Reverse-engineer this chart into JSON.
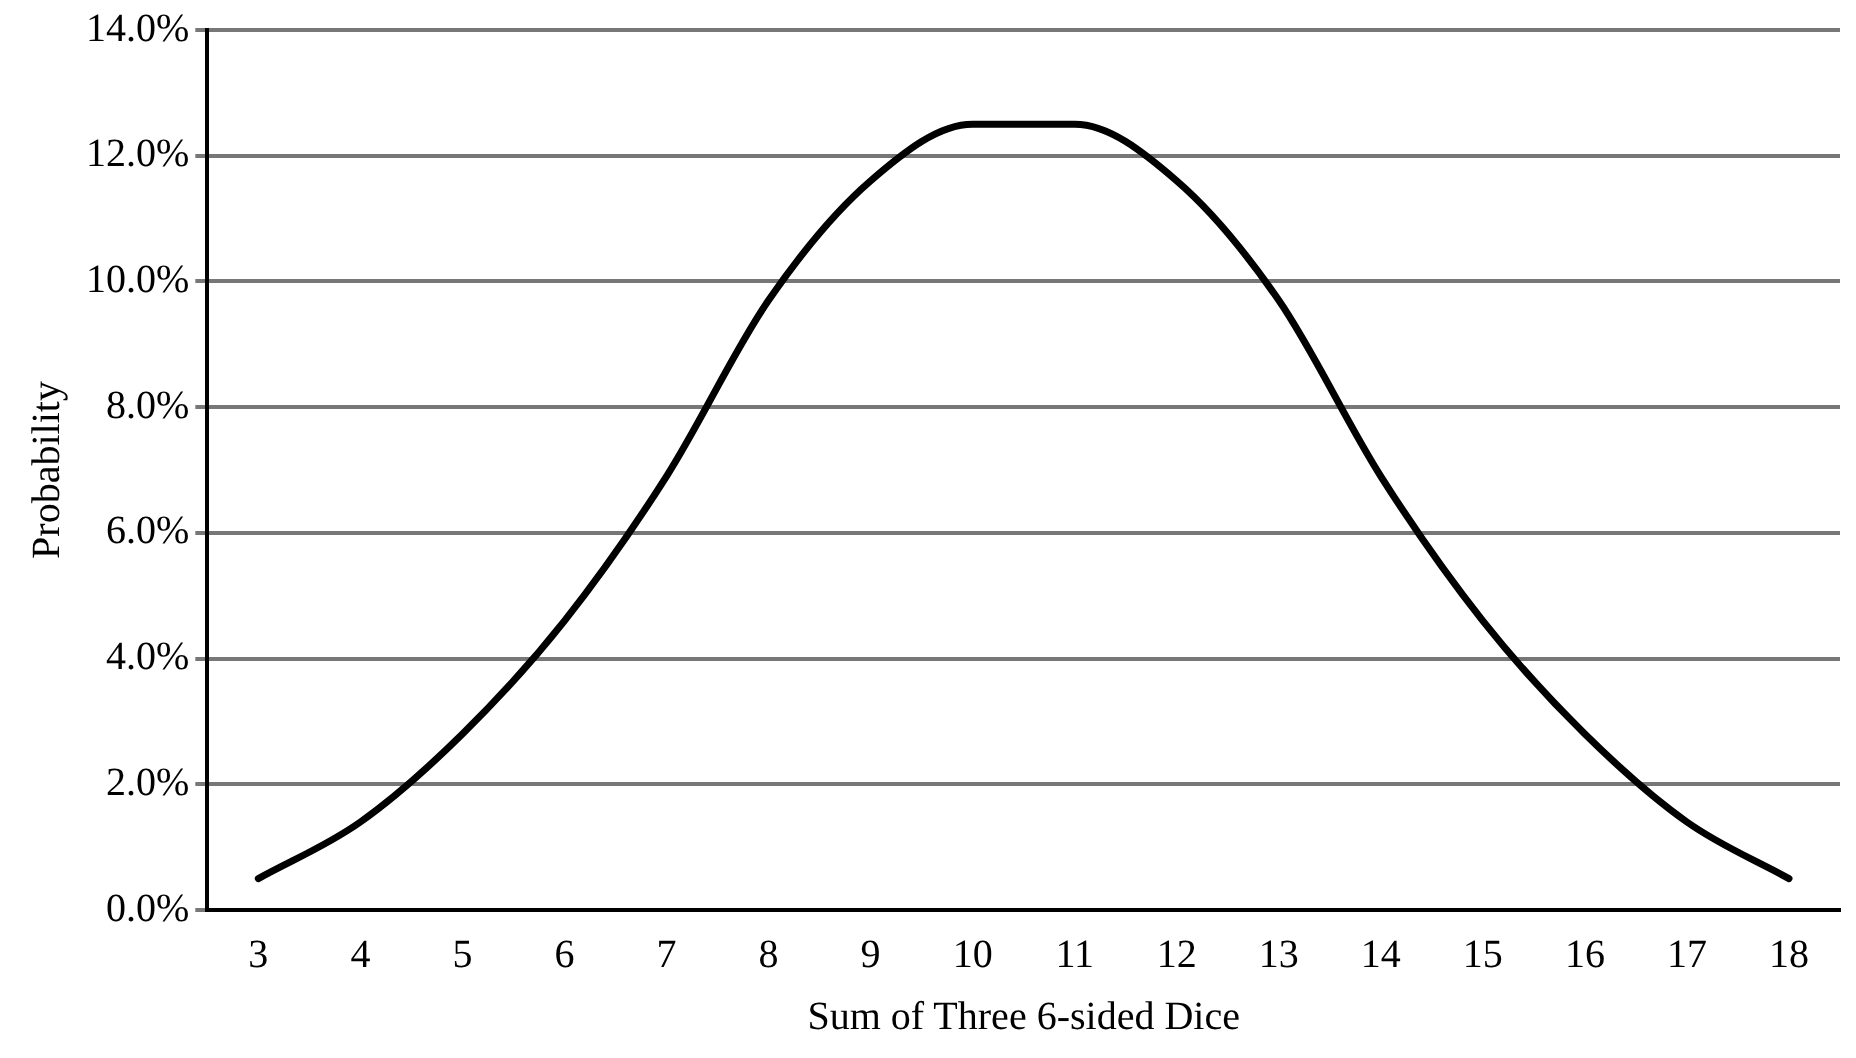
{
  "chart_data": {
    "type": "line",
    "xlabel": "Sum of Three 6-sided Dice",
    "ylabel": "Probability",
    "categories": [
      "3",
      "4",
      "5",
      "6",
      "7",
      "8",
      "9",
      "10",
      "11",
      "12",
      "13",
      "14",
      "15",
      "16",
      "17",
      "18"
    ],
    "series": [
      {
        "color": "#000000",
        "values": [
          0.5,
          1.4,
          2.8,
          4.6,
          6.9,
          9.7,
          11.6,
          12.5,
          12.5,
          11.6,
          9.7,
          6.9,
          4.6,
          2.8,
          1.4,
          0.5
        ]
      }
    ],
    "ylim": [
      0,
      14
    ],
    "yticks": [
      {
        "value": 0,
        "label": "0.0%"
      },
      {
        "value": 2,
        "label": "2.0%"
      },
      {
        "value": 4,
        "label": "4.0%"
      },
      {
        "value": 6,
        "label": "6.0%"
      },
      {
        "value": 8,
        "label": "8.0%"
      },
      {
        "value": 10,
        "label": "10.0%"
      },
      {
        "value": 12,
        "label": "12.0%"
      },
      {
        "value": 14,
        "label": "14.0%"
      }
    ],
    "grid": "y",
    "legend": false,
    "marker": "none",
    "line_style": "solid"
  }
}
